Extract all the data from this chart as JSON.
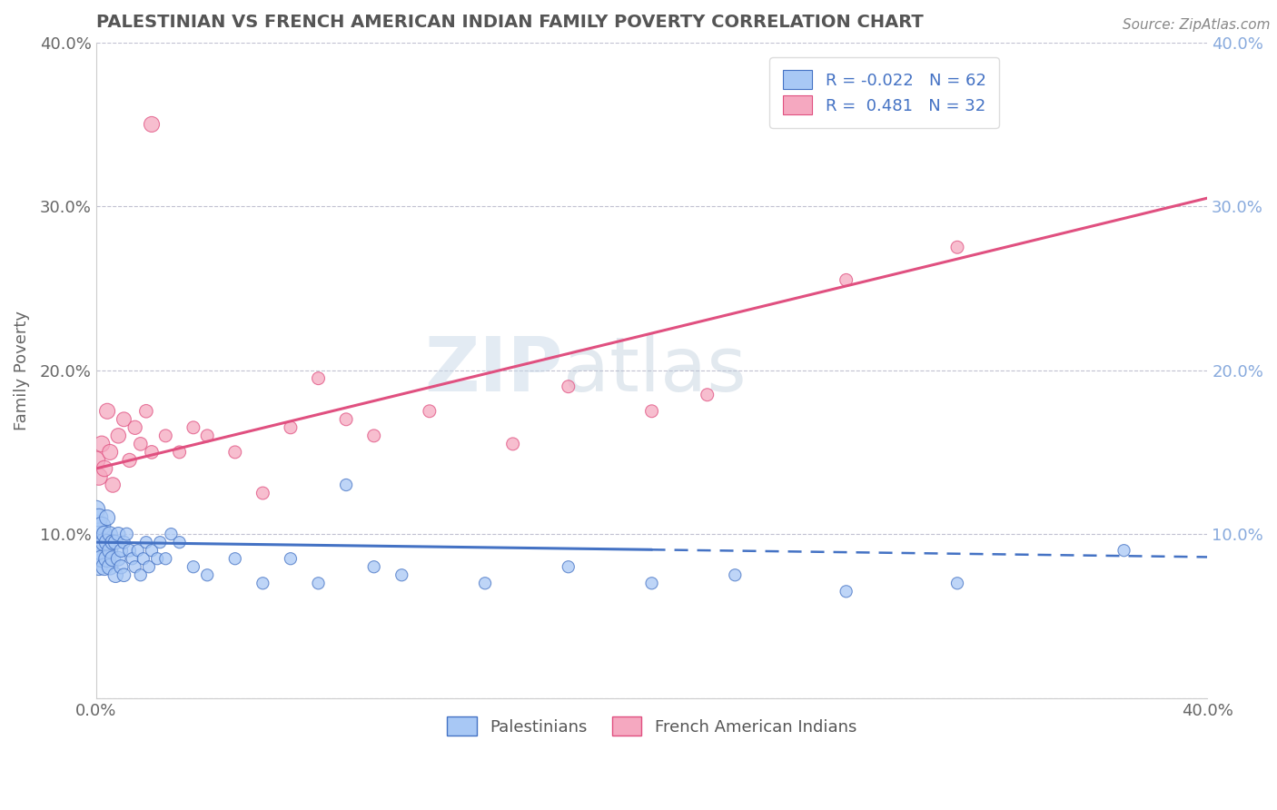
{
  "title": "PALESTINIAN VS FRENCH AMERICAN INDIAN FAMILY POVERTY CORRELATION CHART",
  "source": "Source: ZipAtlas.com",
  "ylabel": "Family Poverty",
  "xlim": [
    0.0,
    0.4
  ],
  "ylim": [
    0.0,
    0.4
  ],
  "color_palestinians": "#a8c8f5",
  "color_fai": "#f5a8c0",
  "line_color_palestinians": "#4472c4",
  "line_color_fai": "#e05080",
  "background_color": "#ffffff",
  "pal_x": [
    0.0,
    0.0,
    0.0,
    0.0,
    0.0,
    0.001,
    0.001,
    0.001,
    0.001,
    0.002,
    0.002,
    0.002,
    0.003,
    0.003,
    0.003,
    0.004,
    0.004,
    0.004,
    0.005,
    0.005,
    0.005,
    0.006,
    0.006,
    0.007,
    0.007,
    0.008,
    0.008,
    0.009,
    0.009,
    0.01,
    0.01,
    0.011,
    0.012,
    0.013,
    0.014,
    0.015,
    0.016,
    0.017,
    0.018,
    0.019,
    0.02,
    0.022,
    0.023,
    0.025,
    0.027,
    0.03,
    0.035,
    0.04,
    0.05,
    0.06,
    0.07,
    0.08,
    0.09,
    0.1,
    0.11,
    0.14,
    0.17,
    0.2,
    0.23,
    0.27,
    0.31,
    0.37
  ],
  "pal_y": [
    0.095,
    0.105,
    0.09,
    0.115,
    0.085,
    0.1,
    0.095,
    0.11,
    0.08,
    0.09,
    0.105,
    0.085,
    0.095,
    0.08,
    0.1,
    0.085,
    0.095,
    0.11,
    0.08,
    0.09,
    0.1,
    0.085,
    0.095,
    0.075,
    0.095,
    0.085,
    0.1,
    0.08,
    0.09,
    0.075,
    0.095,
    0.1,
    0.09,
    0.085,
    0.08,
    0.09,
    0.075,
    0.085,
    0.095,
    0.08,
    0.09,
    0.085,
    0.095,
    0.085,
    0.1,
    0.095,
    0.08,
    0.075,
    0.085,
    0.07,
    0.085,
    0.07,
    0.13,
    0.08,
    0.075,
    0.07,
    0.08,
    0.07,
    0.075,
    0.065,
    0.07,
    0.09
  ],
  "pal_size": [
    400,
    300,
    250,
    200,
    200,
    300,
    250,
    200,
    180,
    250,
    200,
    180,
    200,
    180,
    160,
    180,
    160,
    150,
    160,
    150,
    140,
    150,
    140,
    140,
    130,
    130,
    120,
    120,
    110,
    110,
    100,
    100,
    100,
    90,
    90,
    90,
    90,
    90,
    90,
    90,
    90,
    90,
    90,
    90,
    90,
    90,
    90,
    90,
    90,
    90,
    90,
    90,
    90,
    90,
    90,
    90,
    90,
    90,
    90,
    90,
    90,
    90
  ],
  "fai_x": [
    0.0,
    0.001,
    0.002,
    0.003,
    0.004,
    0.005,
    0.006,
    0.008,
    0.01,
    0.012,
    0.014,
    0.016,
    0.018,
    0.02,
    0.025,
    0.03,
    0.035,
    0.04,
    0.05,
    0.06,
    0.07,
    0.08,
    0.09,
    0.1,
    0.12,
    0.15,
    0.17,
    0.2,
    0.22,
    0.27,
    0.31,
    0.02
  ],
  "fai_y": [
    0.145,
    0.135,
    0.155,
    0.14,
    0.175,
    0.15,
    0.13,
    0.16,
    0.17,
    0.145,
    0.165,
    0.155,
    0.175,
    0.15,
    0.16,
    0.15,
    0.165,
    0.16,
    0.15,
    0.125,
    0.165,
    0.195,
    0.17,
    0.16,
    0.175,
    0.155,
    0.19,
    0.175,
    0.185,
    0.255,
    0.275,
    0.35
  ],
  "fai_size": [
    200,
    180,
    160,
    160,
    150,
    150,
    140,
    140,
    130,
    120,
    120,
    110,
    110,
    110,
    100,
    100,
    100,
    100,
    100,
    100,
    100,
    100,
    100,
    100,
    100,
    100,
    100,
    100,
    100,
    100,
    100,
    150
  ],
  "pal_line_x0": 0.0,
  "pal_line_x1": 0.4,
  "pal_line_y0": 0.095,
  "pal_line_y1": 0.086,
  "pal_line_solid_end": 0.2,
  "fai_line_x0": 0.0,
  "fai_line_x1": 0.4,
  "fai_line_y0": 0.14,
  "fai_line_y1": 0.305
}
